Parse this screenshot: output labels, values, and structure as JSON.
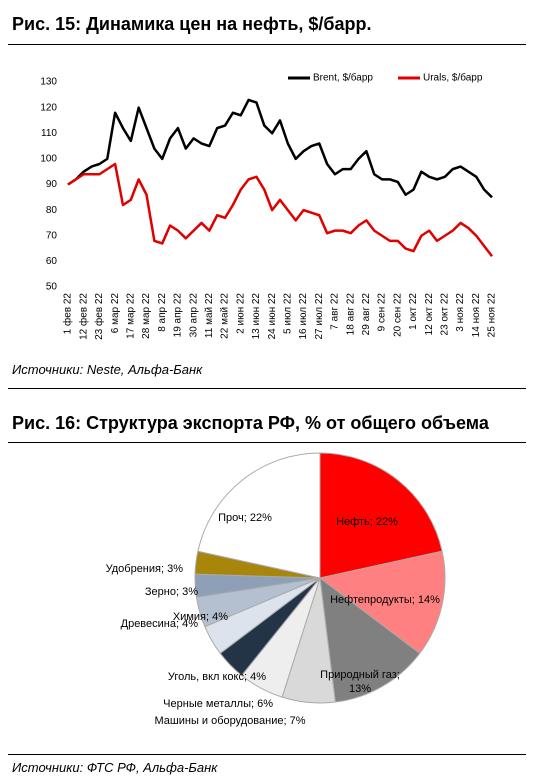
{
  "chart_data": [
    {
      "type": "line",
      "title": "Рис. 15: Динамика цен на нефть, $/барр.",
      "source": "Источники: Neste, Альфа-Банк",
      "categories": [
        "1 фев 22",
        null,
        "12 фев 22",
        null,
        "23 фев 22",
        null,
        "6 мар 22",
        null,
        "17 мар 22",
        null,
        "28 мар 22",
        null,
        "8 апр 22",
        null,
        "19 апр 22",
        null,
        "30 апр 22",
        null,
        "11 май 22",
        null,
        "22 май 22",
        null,
        "2 июн 22",
        null,
        "13 июн 22",
        null,
        "24 июн 22",
        null,
        "5 июл 22",
        null,
        "16 июл 22",
        null,
        "27 июл 22",
        null,
        "7 авг 22",
        null,
        "18 авг 22",
        null,
        "29 авг 22",
        null,
        "9 сен 22",
        null,
        "20 сен 22",
        null,
        "1 окт 22",
        null,
        "12 окт 22",
        null,
        "23 окт 22",
        null,
        "3 ноя 22",
        null,
        "14 ноя 22",
        null,
        "25 ноя 22"
      ],
      "series": [
        {
          "name": "Brent, $/барр",
          "color": "#000000",
          "values": [
            90,
            92,
            95,
            97,
            98,
            100,
            118,
            112,
            107,
            120,
            112,
            104,
            100,
            108,
            112,
            104,
            108,
            106,
            105,
            112,
            113,
            118,
            117,
            123,
            122,
            113,
            110,
            115,
            106,
            100,
            103,
            105,
            106,
            98,
            94,
            96,
            96,
            100,
            103,
            94,
            92,
            92,
            91,
            86,
            88,
            95,
            93,
            92,
            93,
            96,
            97,
            95,
            93,
            88,
            85
          ]
        },
        {
          "name": "Urals, $/барр",
          "color": "#e00000",
          "values": [
            90,
            92,
            94,
            94,
            94,
            96,
            98,
            82,
            84,
            92,
            86,
            68,
            67,
            74,
            72,
            69,
            72,
            75,
            72,
            78,
            77,
            82,
            88,
            92,
            93,
            88,
            80,
            84,
            80,
            76,
            80,
            79,
            78,
            71,
            72,
            72,
            71,
            74,
            76,
            72,
            70,
            68,
            68,
            65,
            64,
            70,
            72,
            68,
            70,
            72,
            75,
            73,
            70,
            66,
            62
          ]
        }
      ],
      "ylim": [
        50,
        130
      ],
      "yticks": [
        50,
        60,
        70,
        80,
        90,
        100,
        110,
        120,
        130
      ],
      "grid": false,
      "legend": "top"
    },
    {
      "type": "pie",
      "title": "Рис. 16: Структура экспорта РФ, % от общего объема",
      "source": "Источники: ФТС РФ, Альфа-Банк",
      "values": [
        22,
        14,
        13,
        7,
        6,
        4,
        4,
        4,
        3,
        3,
        22
      ],
      "value_labels": [
        "Нефть; 22%",
        "Нефтепродукты; 14%",
        "Природный газ; 13%",
        "Машины и оборудование; 7%",
        "Черные металлы; 6%",
        "Уголь, вкл кокс; 4%",
        "Химия; 4%",
        "Древесина; 4%",
        "Зерно; 3%",
        "Удобрения; 3%",
        "Проч; 22%"
      ],
      "colors": [
        "#ff0000",
        "#ff8080",
        "#808080",
        "#d9d9d9",
        "#eeeeee",
        "#243447",
        "#dce3ec",
        "#b4c0d0",
        "#8ea0b8",
        "#a8860c",
        "#ffffff"
      ]
    }
  ]
}
